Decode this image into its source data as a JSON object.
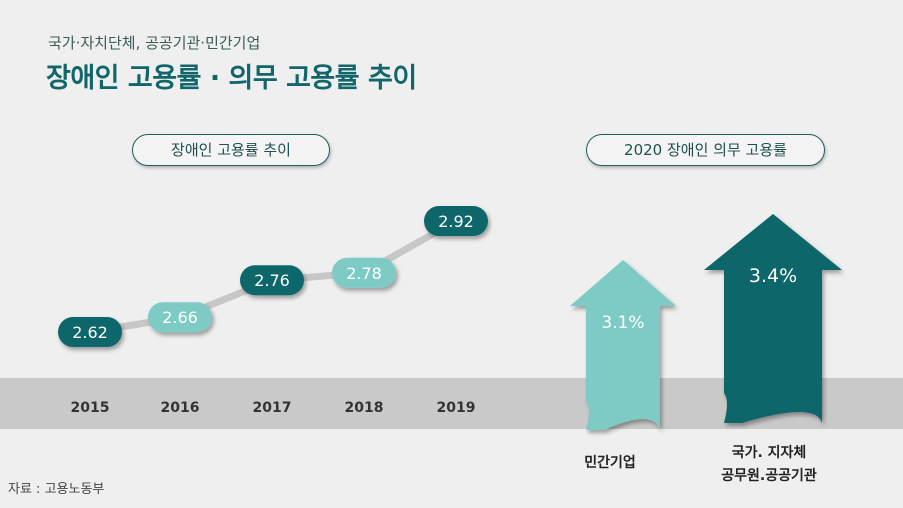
{
  "header": {
    "subtitle": "국가·자치단체, 공공기관·민간기업",
    "title": "장애인 고용률 · 의무 고용률 추이"
  },
  "labels": {
    "left_pill": "장애인 고용률 추이",
    "right_pill": "2020 장애인 의무 고용률"
  },
  "source": "자료 : 고용노동부",
  "colors": {
    "dark_teal": "#10666a",
    "light_teal": "#7ecbc6",
    "connector": "#c7c7c7",
    "band": "#c9c9c9"
  },
  "chart_data": [
    {
      "type": "line",
      "title": "장애인 고용률 추이",
      "categories": [
        "2015",
        "2016",
        "2017",
        "2018",
        "2019"
      ],
      "values": [
        2.62,
        2.66,
        2.76,
        2.78,
        2.92
      ],
      "value_labels": [
        "2.62",
        "2.66",
        "2.76",
        "2.78",
        "2.92"
      ],
      "ylim": [
        2.55,
        2.95
      ]
    },
    {
      "type": "bar",
      "title": "2020 장애인 의무 고용률",
      "categories": [
        "민간기업",
        "국가. 지자체\n공무원.공공기관"
      ],
      "values": [
        3.1,
        3.4
      ],
      "value_labels": [
        "3.1%",
        "3.4%"
      ]
    }
  ]
}
